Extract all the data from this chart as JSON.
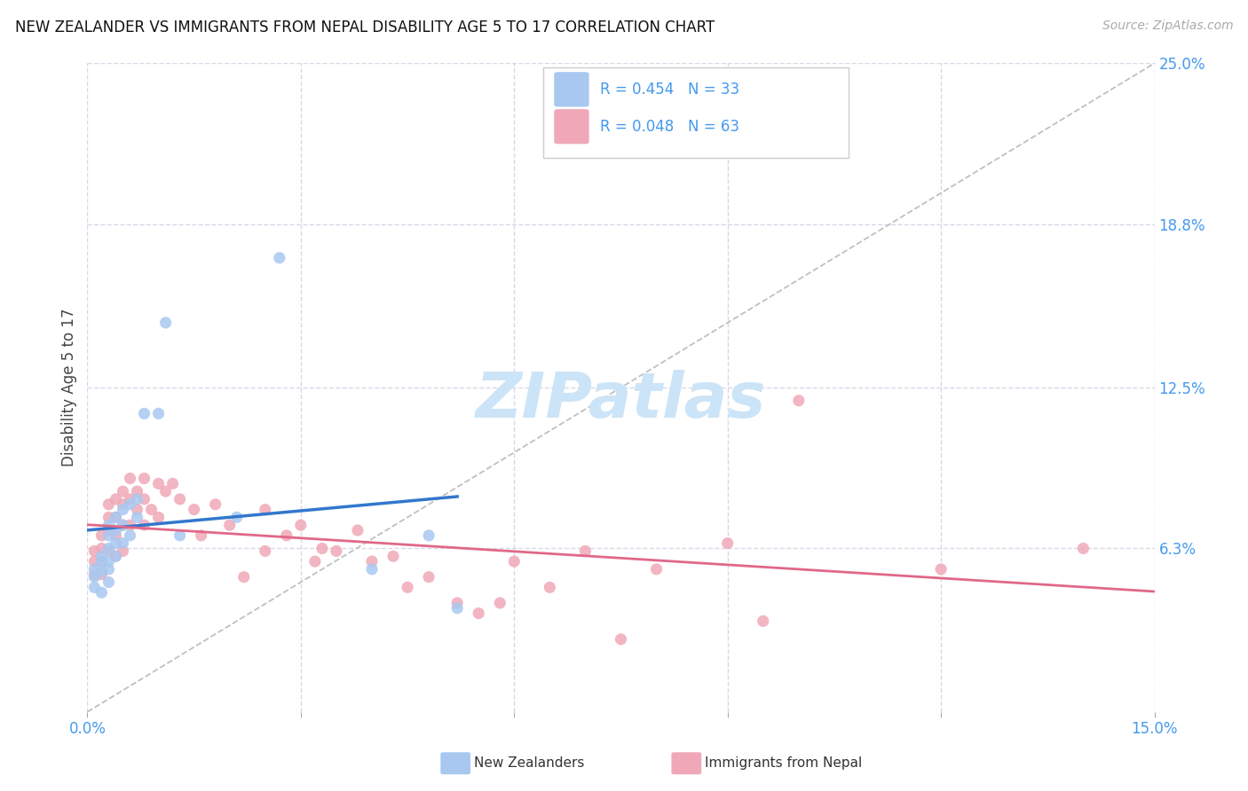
{
  "title": "NEW ZEALANDER VS IMMIGRANTS FROM NEPAL DISABILITY AGE 5 TO 17 CORRELATION CHART",
  "source": "Source: ZipAtlas.com",
  "ylabel": "Disability Age 5 to 17",
  "x_min": 0.0,
  "x_max": 0.15,
  "y_min": 0.0,
  "y_max": 0.25,
  "x_tick_positions": [
    0.0,
    0.03,
    0.06,
    0.09,
    0.12,
    0.15
  ],
  "x_tick_labels": [
    "0.0%",
    "",
    "",
    "",
    "",
    "15.0%"
  ],
  "y_tick_labels_right": [
    "25.0%",
    "18.8%",
    "12.5%",
    "6.3%"
  ],
  "y_tick_values_right": [
    0.25,
    0.188,
    0.125,
    0.063
  ],
  "legend_nz_R": "R = 0.454",
  "legend_nz_N": "N = 33",
  "legend_nepal_R": "R = 0.048",
  "legend_nepal_N": "N = 63",
  "legend_label_nz": "New Zealanders",
  "legend_label_nepal": "Immigrants from Nepal",
  "color_nz": "#a8c8f0",
  "color_nepal": "#f0a8b8",
  "color_nz_line": "#3377cc",
  "color_nepal_line": "#e06888",
  "color_diagonal": "#c0c0c0",
  "color_text_blue": "#4499ee",
  "nz_x": [
    0.001,
    0.001,
    0.001,
    0.002,
    0.002,
    0.002,
    0.002,
    0.003,
    0.003,
    0.003,
    0.003,
    0.003,
    0.003,
    0.004,
    0.004,
    0.004,
    0.004,
    0.005,
    0.005,
    0.005,
    0.006,
    0.006,
    0.007,
    0.007,
    0.008,
    0.01,
    0.011,
    0.013,
    0.021,
    0.027,
    0.04,
    0.048,
    0.052
  ],
  "nz_y": [
    0.055,
    0.052,
    0.048,
    0.06,
    0.058,
    0.054,
    0.046,
    0.072,
    0.068,
    0.063,
    0.058,
    0.055,
    0.05,
    0.075,
    0.07,
    0.065,
    0.06,
    0.078,
    0.072,
    0.065,
    0.08,
    0.068,
    0.082,
    0.075,
    0.115,
    0.115,
    0.15,
    0.068,
    0.075,
    0.175,
    0.055,
    0.068,
    0.04
  ],
  "nepal_x": [
    0.001,
    0.001,
    0.001,
    0.002,
    0.002,
    0.002,
    0.002,
    0.003,
    0.003,
    0.003,
    0.003,
    0.004,
    0.004,
    0.004,
    0.004,
    0.005,
    0.005,
    0.005,
    0.005,
    0.006,
    0.006,
    0.006,
    0.007,
    0.007,
    0.008,
    0.008,
    0.008,
    0.009,
    0.01,
    0.01,
    0.011,
    0.012,
    0.013,
    0.015,
    0.016,
    0.018,
    0.02,
    0.022,
    0.025,
    0.025,
    0.028,
    0.03,
    0.032,
    0.033,
    0.035,
    0.038,
    0.04,
    0.043,
    0.045,
    0.048,
    0.052,
    0.055,
    0.058,
    0.06,
    0.065,
    0.07,
    0.075,
    0.08,
    0.09,
    0.095,
    0.1,
    0.12,
    0.14
  ],
  "nepal_y": [
    0.062,
    0.058,
    0.053,
    0.068,
    0.063,
    0.058,
    0.053,
    0.08,
    0.075,
    0.07,
    0.062,
    0.082,
    0.075,
    0.068,
    0.06,
    0.085,
    0.08,
    0.072,
    0.062,
    0.09,
    0.082,
    0.072,
    0.085,
    0.078,
    0.09,
    0.082,
    0.072,
    0.078,
    0.088,
    0.075,
    0.085,
    0.088,
    0.082,
    0.078,
    0.068,
    0.08,
    0.072,
    0.052,
    0.078,
    0.062,
    0.068,
    0.072,
    0.058,
    0.063,
    0.062,
    0.07,
    0.058,
    0.06,
    0.048,
    0.052,
    0.042,
    0.038,
    0.042,
    0.058,
    0.048,
    0.062,
    0.028,
    0.055,
    0.065,
    0.035,
    0.12,
    0.055,
    0.063
  ],
  "background_color": "#ffffff",
  "grid_color": "#d8d8e8",
  "watermark_text": "ZIPatlas",
  "watermark_color": "#cce4f7",
  "watermark_fontsize": 52
}
